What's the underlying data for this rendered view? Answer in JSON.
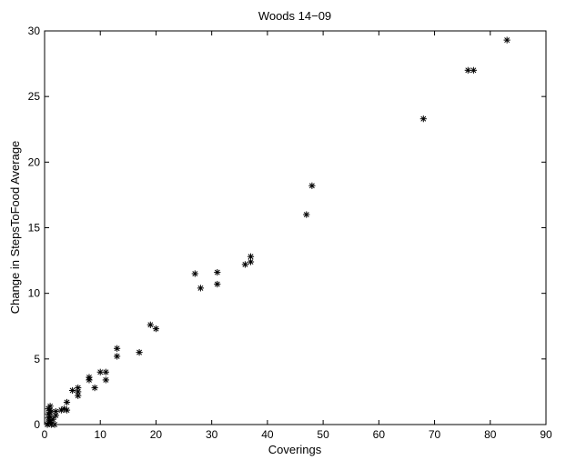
{
  "chart_data": {
    "type": "scatter",
    "title": "Woods 14−09",
    "xlabel": "Coverings",
    "ylabel": "Change in StepsToFood Average",
    "xlim": [
      0,
      90
    ],
    "ylim": [
      0,
      30
    ],
    "x_ticks": [
      "0",
      "10",
      "20",
      "30",
      "40",
      "50",
      "60",
      "70",
      "80",
      "90"
    ],
    "y_ticks": [
      "0",
      "5",
      "10",
      "15",
      "20",
      "25",
      "30"
    ],
    "x_tick_values": [
      0,
      10,
      20,
      30,
      40,
      50,
      60,
      70,
      80,
      90
    ],
    "y_tick_values": [
      0,
      5,
      10,
      15,
      20,
      25,
      30
    ],
    "grid": false,
    "legend": "none",
    "marker": "asterisk",
    "marker_color": "#000000",
    "series": [
      {
        "points": [
          [
            83,
            29.3
          ],
          [
            76,
            27.0
          ],
          [
            77,
            27.0
          ],
          [
            68,
            23.3
          ],
          [
            48,
            18.2
          ],
          [
            47,
            16.0
          ],
          [
            37,
            12.8
          ],
          [
            37,
            12.4
          ],
          [
            36,
            12.2
          ],
          [
            27,
            11.5
          ],
          [
            31,
            11.6
          ],
          [
            31,
            10.7
          ],
          [
            28,
            10.4
          ],
          [
            19,
            7.6
          ],
          [
            20,
            7.3
          ],
          [
            13,
            5.8
          ],
          [
            13,
            5.2
          ],
          [
            17,
            5.5
          ],
          [
            10,
            4.0
          ],
          [
            11,
            4.0
          ],
          [
            11,
            3.4
          ],
          [
            8,
            3.6
          ],
          [
            8,
            3.4
          ],
          [
            9,
            2.8
          ],
          [
            5,
            2.6
          ],
          [
            6,
            2.8
          ],
          [
            6,
            2.5
          ],
          [
            6,
            2.2
          ],
          [
            4,
            1.7
          ],
          [
            3.5,
            1.2
          ],
          [
            4,
            1.1
          ],
          [
            3,
            1.1
          ],
          [
            2,
            1.0
          ],
          [
            2,
            0.7
          ],
          [
            1.5,
            0.4
          ],
          [
            1,
            0.2
          ],
          [
            1,
            1.4
          ],
          [
            1,
            1.1
          ],
          [
            1,
            0.9
          ],
          [
            1,
            0.6
          ],
          [
            1,
            0.3
          ],
          [
            0.7,
            1.2
          ],
          [
            0.7,
            0.8
          ],
          [
            0.7,
            0.5
          ],
          [
            0.7,
            0.1
          ],
          [
            1.2,
            0.0
          ],
          [
            0.5,
            0.0
          ],
          [
            1.8,
            0.0
          ]
        ]
      }
    ]
  }
}
